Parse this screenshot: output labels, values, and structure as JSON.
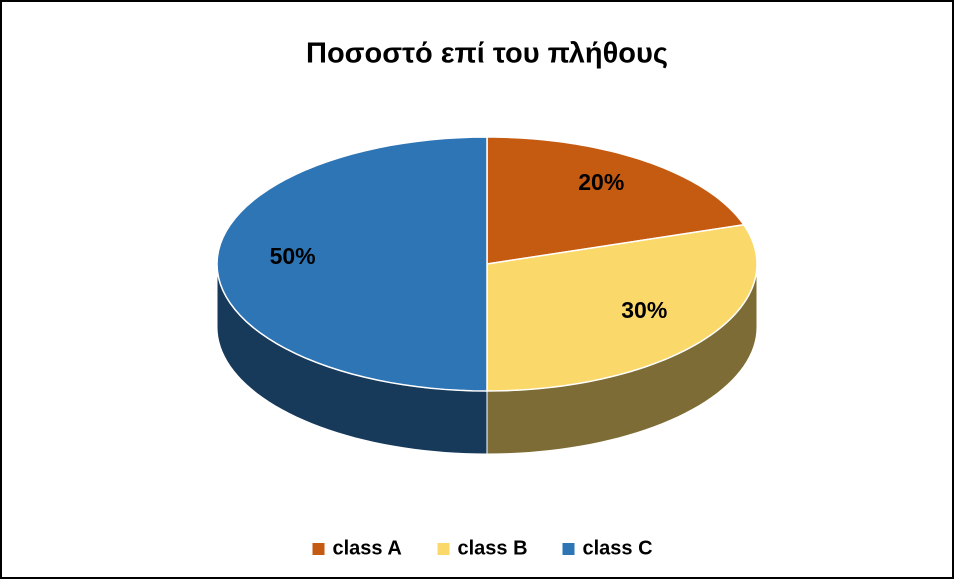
{
  "chart_data": {
    "type": "pie",
    "title": "Ποσοστό επί του πλήθους",
    "categories": [
      "class A",
      "class B",
      "class C"
    ],
    "values": [
      20,
      30,
      50
    ],
    "value_labels": [
      "20%",
      "30%",
      "50%"
    ],
    "colors": [
      "#c55a11",
      "#fbd86a",
      "#2e75b6"
    ],
    "legend": "bottom"
  }
}
